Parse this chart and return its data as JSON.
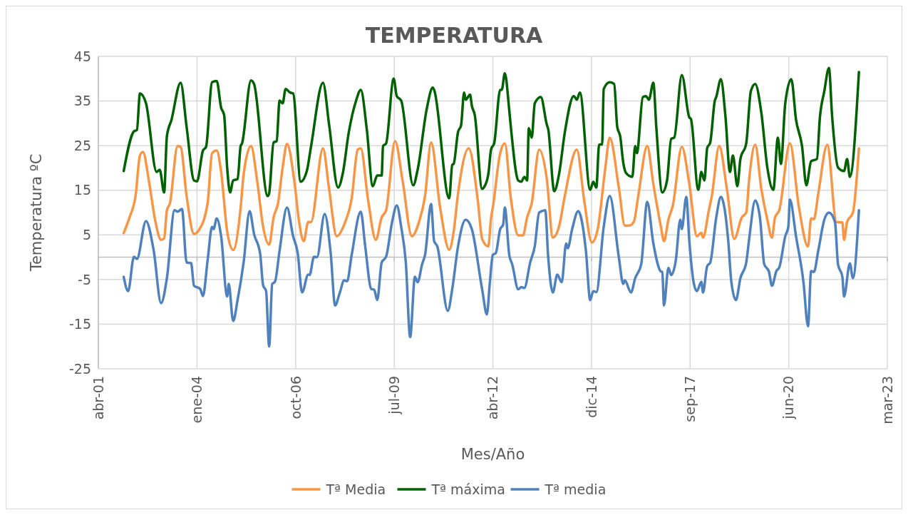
{
  "chart_data": {
    "type": "line",
    "title": "TEMPERATURA",
    "xlabel": "Mes/Año",
    "ylabel": "Temperatura ºC",
    "ylim": [
      -25,
      45
    ],
    "yticks": [
      -25,
      -15,
      -5,
      5,
      15,
      25,
      35,
      45
    ],
    "xlim": [
      "2001-04-19",
      "2023-03-16"
    ],
    "xticks": [
      {
        "value": "2001-04-19",
        "label": "abr-01"
      },
      {
        "value": "2004-01-14",
        "label": "ene-04"
      },
      {
        "value": "2006-10-11",
        "label": "oct-06"
      },
      {
        "value": "2009-07-07",
        "label": "jul-09"
      },
      {
        "value": "2012-04-02",
        "label": "abr-12"
      },
      {
        "value": "2014-12-28",
        "label": "dic-14"
      },
      {
        "value": "2017-09-23",
        "label": "sep-17"
      },
      {
        "value": "2020-06-19",
        "label": "jun-20"
      },
      {
        "value": "2023-03-16",
        "label": "mar-23"
      }
    ],
    "grid": true,
    "legend": "bottom",
    "line_style": "solid",
    "marker": "none",
    "series": [
      {
        "name": "Tª Media",
        "color": "#f79646",
        "x": [
          "2002-01-01",
          "2002-03-01",
          "2002-05-01",
          "2002-06-15",
          "2002-07-15",
          "2002-09-15",
          "2002-11-15",
          "2003-01-15",
          "2003-02-15",
          "2003-03-15",
          "2003-04-15",
          "2003-07-01",
          "2003-08-01",
          "2003-10-01",
          "2003-12-15",
          "2004-02-01",
          "2004-05-01",
          "2004-06-15",
          "2004-08-01",
          "2004-09-15",
          "2004-11-15",
          "2005-01-15",
          "2005-04-01",
          "2005-05-01",
          "2005-07-15",
          "2005-09-15",
          "2005-11-15",
          "2006-01-15",
          "2006-03-01",
          "2006-04-15",
          "2006-06-01",
          "2006-07-15",
          "2006-10-01",
          "2006-11-15",
          "2007-01-01",
          "2007-02-15",
          "2007-03-15",
          "2007-07-15",
          "2007-09-15",
          "2007-12-01",
          "2008-02-15",
          "2008-05-01",
          "2008-07-01",
          "2008-08-01",
          "2008-10-15",
          "2009-01-01",
          "2009-03-01",
          "2009-04-15",
          "2009-07-15",
          "2009-10-01",
          "2010-01-01",
          "2010-03-15",
          "2010-05-15",
          "2010-07-15",
          "2010-10-15",
          "2011-01-15",
          "2011-03-01",
          "2011-04-15",
          "2011-08-01",
          "2011-11-01",
          "2011-12-15",
          "2012-02-15",
          "2012-03-15",
          "2012-04-01",
          "2012-06-15",
          "2012-08-01",
          "2012-10-01",
          "2012-12-15",
          "2013-02-01",
          "2013-03-15",
          "2013-05-01",
          "2013-07-15",
          "2013-10-01",
          "2013-12-01",
          "2014-02-01",
          "2014-04-01",
          "2014-08-01",
          "2014-10-15",
          "2015-01-01",
          "2015-03-01",
          "2015-05-15",
          "2015-07-01",
          "2015-10-01",
          "2015-12-01",
          "2016-01-15",
          "2016-03-01",
          "2016-04-15",
          "2016-07-15",
          "2016-09-15",
          "2016-12-01",
          "2017-01-01",
          "2017-02-15",
          "2017-04-01",
          "2017-07-01",
          "2017-09-15",
          "2017-12-01",
          "2018-01-15",
          "2018-02-01",
          "2018-04-01",
          "2018-05-01",
          "2018-07-15",
          "2018-10-01",
          "2018-12-15",
          "2019-03-01",
          "2019-04-15",
          "2019-05-15",
          "2019-07-15",
          "2019-09-15",
          "2019-11-15",
          "2020-01-01",
          "2020-02-01",
          "2020-03-15",
          "2020-07-01",
          "2020-10-01",
          "2021-01-01",
          "2021-02-01",
          "2021-03-01",
          "2021-04-15",
          "2021-07-15",
          "2021-10-15",
          "2021-12-15",
          "2022-01-01",
          "2022-02-01",
          "2022-04-01",
          "2022-06-01"
        ],
        "values": [
          5.4,
          8.9,
          13.7,
          22.8,
          23.6,
          16.9,
          8.4,
          3.9,
          4.2,
          10.5,
          12.1,
          24.9,
          24.7,
          13.7,
          5.2,
          6,
          12.1,
          23.3,
          23.9,
          19.1,
          5.8,
          1.6,
          11.1,
          18.5,
          24.9,
          17.2,
          6.8,
          2.8,
          8.9,
          12.1,
          20.1,
          25.4,
          16.4,
          7.9,
          3.6,
          7.9,
          7.9,
          24.4,
          15.3,
          4.7,
          7.3,
          13.2,
          24.1,
          24.4,
          12.7,
          3.9,
          8.9,
          10.5,
          26,
          16.9,
          4.7,
          7.9,
          13.7,
          25.7,
          11.1,
          1.7,
          5.7,
          14.3,
          24.4,
          12.7,
          4.1,
          2.4,
          8.9,
          11.1,
          23.3,
          25.5,
          13.2,
          4.9,
          4.9,
          8.9,
          12.1,
          24.1,
          17.5,
          4.4,
          6.8,
          13.7,
          24.1,
          12.7,
          3.3,
          6.3,
          19.6,
          26.8,
          15.6,
          7.1,
          7.1,
          7.9,
          13.7,
          24.9,
          16.4,
          6.8,
          3.6,
          8.4,
          11.6,
          24.7,
          16.4,
          4.7,
          5.5,
          4.4,
          10.5,
          13.7,
          24.9,
          15.3,
          4.1,
          8.9,
          10,
          17.5,
          25.2,
          15.3,
          8.4,
          4.4,
          8.9,
          10.5,
          25.5,
          11.1,
          2.4,
          8.7,
          8.5,
          14.3,
          25.2,
          7.9,
          7.8,
          3.9,
          7.9,
          10,
          24.4
        ]
      },
      {
        "name": "Tª máxima",
        "color": "#006100",
        "x": [
          "2002-01-01",
          "2002-04-15",
          "2002-05-15",
          "2002-06-15",
          "2002-08-15",
          "2002-12-01",
          "2003-01-01",
          "2003-02-15",
          "2003-03-15",
          "2003-05-01",
          "2003-08-01",
          "2003-10-01",
          "2003-12-15",
          "2004-01-15",
          "2004-03-15",
          "2004-04-15",
          "2004-06-15",
          "2004-08-01",
          "2004-09-15",
          "2004-10-15",
          "2004-11-15",
          "2004-12-15",
          "2005-01-15",
          "2005-03-01",
          "2005-04-01",
          "2005-04-15",
          "2005-07-15",
          "2005-08-15",
          "2006-01-01",
          "2006-01-15",
          "2006-03-01",
          "2006-04-01",
          "2006-05-01",
          "2006-06-01",
          "2006-07-01",
          "2006-08-15",
          "2006-09-15",
          "2006-12-01",
          "2007-02-01",
          "2007-03-15",
          "2007-07-15",
          "2007-09-15",
          "2007-12-15",
          "2008-02-01",
          "2008-04-01",
          "2008-06-15",
          "2008-08-01",
          "2008-10-01",
          "2008-12-01",
          "2009-01-15",
          "2009-03-01",
          "2009-03-15",
          "2009-04-15",
          "2009-07-01",
          "2009-08-01",
          "2009-09-15",
          "2010-01-15",
          "2010-03-01",
          "2010-06-01",
          "2010-08-01",
          "2010-08-15",
          "2011-01-15",
          "2011-02-15",
          "2011-03-01",
          "2011-04-15",
          "2011-05-15",
          "2011-06-15",
          "2011-07-01",
          "2011-08-15",
          "2011-09-01",
          "2011-10-01",
          "2011-12-15",
          "2012-01-01",
          "2012-02-15",
          "2012-03-15",
          "2012-04-15",
          "2012-06-15",
          "2012-07-01",
          "2012-08-01",
          "2012-09-15",
          "2012-10-01",
          "2012-12-15",
          "2013-01-15",
          "2013-02-15",
          "2013-03-15",
          "2013-04-01",
          "2013-05-01",
          "2013-06-01",
          "2013-08-01",
          "2013-10-01",
          "2013-10-15",
          "2013-12-15",
          "2014-02-01",
          "2014-04-01",
          "2014-07-01",
          "2014-08-01",
          "2014-09-01",
          "2014-12-15",
          "2015-01-15",
          "2015-02-15",
          "2015-03-15",
          "2015-04-15",
          "2015-05-01",
          "2015-07-01",
          "2015-08-15",
          "2015-09-15",
          "2015-10-15",
          "2015-11-15",
          "2015-12-15",
          "2016-02-15",
          "2016-03-15",
          "2016-04-01",
          "2016-06-01",
          "2016-07-01",
          "2016-08-01",
          "2016-09-15",
          "2016-10-15",
          "2016-12-15",
          "2017-02-01",
          "2017-03-15",
          "2017-04-15",
          "2017-07-01",
          "2017-09-15",
          "2017-10-01",
          "2017-12-15",
          "2018-01-15",
          "2018-02-15",
          "2018-03-15",
          "2018-04-15",
          "2018-06-01",
          "2018-06-15",
          "2018-08-01",
          "2018-09-15",
          "2018-11-01",
          "2018-12-01",
          "2019-01-15",
          "2019-02-15",
          "2019-04-15",
          "2019-06-01",
          "2019-07-15",
          "2019-09-15",
          "2019-11-15",
          "2020-01-15",
          "2020-03-01",
          "2020-04-01",
          "2020-05-15",
          "2020-07-15",
          "2020-09-01",
          "2020-11-01",
          "2020-12-15",
          "2021-02-01",
          "2021-04-01",
          "2021-05-01",
          "2021-06-15",
          "2021-08-01",
          "2021-09-01",
          "2021-11-01",
          "2022-01-01",
          "2022-02-01",
          "2022-03-01",
          "2022-06-01"
        ],
        "values": [
          19.3,
          28.2,
          28.5,
          36.7,
          34.5,
          19.1,
          19.6,
          14.5,
          27.1,
          30.8,
          39.1,
          29.2,
          17.2,
          17,
          23.9,
          24.7,
          39.2,
          39.5,
          33.5,
          31.9,
          20.1,
          14.5,
          17.2,
          17.5,
          24.9,
          25.5,
          39.6,
          38.8,
          13.7,
          14.3,
          25.7,
          26,
          35.1,
          34.5,
          37.7,
          36.9,
          36.7,
          16.9,
          19.3,
          24.7,
          39.1,
          29.7,
          15.6,
          18.8,
          27.9,
          35.1,
          37.5,
          28.7,
          15.9,
          18.3,
          18.3,
          24.9,
          25.5,
          40,
          36.1,
          35.1,
          16.1,
          19.6,
          33.2,
          38,
          37.5,
          13.2,
          20.7,
          20.9,
          28.1,
          29.5,
          36.9,
          35.3,
          36.4,
          34,
          31.9,
          15.3,
          15.6,
          18.5,
          24.2,
          25.5,
          37.5,
          37.5,
          41.2,
          32.9,
          29.2,
          17.2,
          16.9,
          18,
          17.2,
          28.9,
          26.8,
          34.5,
          35.9,
          29.7,
          28.7,
          14.8,
          18.5,
          27.9,
          36.1,
          35.3,
          36.9,
          15.1,
          16.9,
          15.6,
          25.2,
          25.3,
          37.7,
          39.2,
          38.8,
          29.2,
          27.1,
          21.2,
          18.8,
          18,
          24.9,
          23.3,
          35.9,
          36.1,
          35.3,
          39.1,
          29.2,
          14.5,
          17.2,
          26.5,
          26.8,
          40.8,
          31.3,
          31,
          15.1,
          19.1,
          17.2,
          24.4,
          25.7,
          35.1,
          35.9,
          39.9,
          31.9,
          19.1,
          22.8,
          15.9,
          22,
          25.5,
          37.2,
          38.8,
          32.4,
          20.1,
          15.1,
          26.8,
          20.9,
          34.5,
          39.9,
          30.8,
          24.9,
          16.1,
          21.5,
          22,
          31.3,
          37.2,
          42.4,
          31.9,
          20.1,
          19.3,
          22,
          18,
          41.5
        ]
      },
      {
        "name": "Tª media",
        "color": "#4f81bd",
        "x": [
          "2002-01-01",
          "2002-02-15",
          "2002-04-15",
          "2002-05-15",
          "2002-08-15",
          "2002-11-01",
          "2003-01-15",
          "2003-03-15",
          "2003-06-01",
          "2003-07-01",
          "2003-08-15",
          "2003-10-01",
          "2003-11-15",
          "2003-12-15",
          "2004-02-15",
          "2004-03-15",
          "2004-05-01",
          "2004-06-15",
          "2004-07-01",
          "2004-08-01",
          "2004-09-15",
          "2004-11-15",
          "2004-12-01",
          "2005-01-15",
          "2005-03-01",
          "2005-05-01",
          "2005-07-01",
          "2005-08-15",
          "2005-10-15",
          "2005-11-15",
          "2005-12-15",
          "2006-01-15",
          "2006-02-15",
          "2006-03-15",
          "2006-05-01",
          "2006-07-15",
          "2006-09-15",
          "2006-11-01",
          "2006-12-15",
          "2007-02-15",
          "2007-03-01",
          "2007-04-15",
          "2007-05-15",
          "2007-08-01",
          "2007-10-01",
          "2007-11-15",
          "2008-01-01",
          "2008-02-15",
          "2008-03-15",
          "2008-05-01",
          "2008-08-01",
          "2008-09-15",
          "2008-11-15",
          "2008-12-15",
          "2009-01-15",
          "2009-03-01",
          "2009-04-15",
          "2009-06-15",
          "2009-08-01",
          "2009-09-15",
          "2009-11-01",
          "2009-12-15",
          "2010-02-01",
          "2010-03-01",
          "2010-04-15",
          "2010-05-15",
          "2010-07-15",
          "2010-08-15",
          "2010-09-15",
          "2011-01-01",
          "2011-02-15",
          "2011-04-15",
          "2011-07-01",
          "2011-09-01",
          "2011-12-15",
          "2012-02-01",
          "2012-03-01",
          "2012-04-01",
          "2012-05-01",
          "2012-06-15",
          "2012-07-15",
          "2012-08-01",
          "2012-09-15",
          "2012-10-15",
          "2012-12-15",
          "2013-01-15",
          "2013-02-15",
          "2013-04-15",
          "2013-06-01",
          "2013-07-15",
          "2013-09-15",
          "2013-10-15",
          "2013-12-01",
          "2014-01-15",
          "2014-03-01",
          "2014-04-15",
          "2014-05-01",
          "2014-06-15",
          "2014-08-15",
          "2014-11-01",
          "2014-12-15",
          "2015-01-15",
          "2015-02-15",
          "2015-05-01",
          "2015-07-01",
          "2015-10-01",
          "2015-11-15",
          "2015-12-01",
          "2016-02-01",
          "2016-03-15",
          "2016-05-15",
          "2016-07-15",
          "2016-09-15",
          "2016-12-01",
          "2016-12-15",
          "2017-01-01",
          "2017-02-15",
          "2017-03-15",
          "2017-05-01",
          "2017-06-15",
          "2017-07-01",
          "2017-08-15",
          "2017-09-15",
          "2017-11-01",
          "2017-12-01",
          "2018-01-15",
          "2018-02-01",
          "2018-03-15",
          "2018-04-15",
          "2018-06-15",
          "2018-08-01",
          "2018-10-15",
          "2018-11-15",
          "2019-01-01",
          "2019-02-15",
          "2019-04-15",
          "2019-05-15",
          "2019-07-15",
          "2019-09-01",
          "2019-10-15",
          "2019-12-01",
          "2020-01-01",
          "2020-02-15",
          "2020-03-15",
          "2020-05-15",
          "2020-06-15",
          "2020-07-01",
          "2020-09-01",
          "2020-11-15",
          "2021-01-01",
          "2021-02-01",
          "2021-03-01",
          "2021-04-15",
          "2021-06-15",
          "2021-08-01",
          "2021-10-01",
          "2021-11-01",
          "2021-12-15",
          "2022-01-01",
          "2022-03-01",
          "2022-04-01",
          "2022-06-01"
        ],
        "values": [
          -4.4,
          -7.6,
          0.1,
          -0.4,
          8.1,
          1.5,
          -10.3,
          -4.7,
          10.5,
          10.2,
          10.8,
          -1.2,
          -1.3,
          -6.4,
          -7.1,
          -8.7,
          -0.7,
          6.8,
          6.3,
          8.7,
          4.7,
          -8.8,
          -6,
          -14.3,
          -9.6,
          -1.2,
          10.3,
          5.2,
          0.9,
          -6.3,
          -7.6,
          -20,
          -6,
          -5.5,
          1.5,
          11.1,
          4.7,
          0.9,
          -7.9,
          -3.9,
          -4,
          0.1,
          0,
          9.7,
          0.9,
          -10.8,
          -8,
          -5.2,
          -5.4,
          0.5,
          10.2,
          2.5,
          -7.1,
          -7.3,
          -9.6,
          -1.2,
          0.1,
          7.9,
          11.6,
          6.8,
          -1.2,
          -17.9,
          -4.4,
          -5.6,
          -1.6,
          0.5,
          11.9,
          3.6,
          2.5,
          -12,
          -7.1,
          2.5,
          8.4,
          6.3,
          -7.2,
          -12.8,
          -6,
          0.5,
          0.9,
          6.3,
          7.3,
          11.1,
          0.5,
          -1.6,
          -7.2,
          -6.7,
          -6.9,
          -1.2,
          2.5,
          10,
          10.5,
          0,
          -7.9,
          -3.9,
          -5.6,
          3.1,
          2,
          6.3,
          10.3,
          1.5,
          -9.6,
          -7.6,
          -7.8,
          6.8,
          13.7,
          0,
          -6,
          -5.2,
          -7.9,
          -4.7,
          -1.6,
          12.4,
          3.1,
          -3.2,
          -3.3,
          -10.8,
          -2.4,
          -4,
          -0.7,
          8.4,
          6.3,
          13.5,
          3.6,
          -6,
          -7.6,
          -5.5,
          -7.9,
          -2,
          -1.2,
          8.9,
          13.5,
          3.6,
          -5.5,
          -9.6,
          -4.7,
          -1.2,
          4.1,
          12.7,
          8.9,
          -1.6,
          -3.2,
          -6.4,
          -3.1,
          -2.3,
          4.7,
          6.8,
          12.9,
          4.7,
          -5.5,
          -15.5,
          -3.1,
          -3.3,
          1.5,
          8.4,
          10,
          7.9,
          -1.6,
          -4.4,
          -8.8,
          -1.4,
          -4.7,
          10.5
        ]
      }
    ]
  }
}
